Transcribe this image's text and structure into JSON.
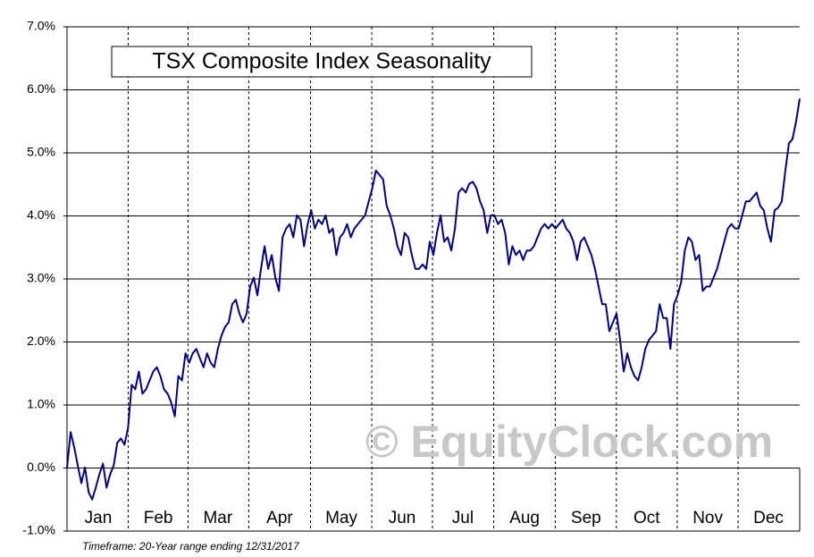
{
  "chart_data": {
    "type": "line",
    "title": "TSX Composite Index Seasonality",
    "watermark": "© EquityClock.com",
    "footnote": "Timeframe: 20-Year range ending 12/31/2017",
    "x": [
      0,
      1,
      2,
      3,
      4,
      5,
      6,
      7,
      8,
      9,
      10,
      11,
      12,
      13,
      14,
      15,
      16,
      17,
      18,
      19,
      20,
      21,
      22,
      23,
      24,
      25,
      26,
      27,
      28,
      29,
      30,
      31,
      32,
      33,
      34,
      35,
      36,
      37,
      38,
      39,
      40,
      41,
      42,
      43,
      44,
      45,
      46,
      47,
      48,
      49,
      50,
      51,
      52,
      53,
      54,
      55,
      56,
      57,
      58,
      59,
      60,
      61,
      62,
      63,
      64,
      65,
      66,
      67,
      68,
      69,
      70,
      71,
      72,
      73,
      74,
      75,
      76,
      77,
      78,
      79,
      80,
      81,
      82,
      83,
      84,
      85,
      86,
      87,
      88,
      89,
      90,
      91,
      92,
      93,
      94,
      95,
      96,
      97,
      98,
      99,
      100,
      101,
      102,
      103,
      104,
      105,
      106,
      107,
      108,
      109,
      110,
      111,
      112,
      113,
      114,
      115,
      116,
      117,
      118,
      119,
      120,
      121,
      122,
      123,
      124,
      125,
      126,
      127,
      128,
      129,
      130,
      131,
      132,
      133,
      134,
      135,
      136,
      137,
      138,
      139,
      140,
      141,
      142,
      143,
      144,
      145,
      146,
      147,
      148,
      149,
      150,
      151,
      152,
      153,
      154,
      155,
      156,
      157,
      158,
      159,
      160,
      161,
      162,
      163,
      164,
      165,
      166,
      167,
      168,
      169,
      170,
      171,
      172,
      173,
      174,
      175,
      176,
      177,
      178,
      179,
      180,
      181,
      182,
      183,
      184,
      185,
      186,
      187,
      188,
      189,
      190,
      191,
      192,
      193,
      194,
      195,
      196,
      197,
      198,
      199,
      200,
      201,
      202,
      203,
      204
    ],
    "series": [
      {
        "color": "#000080",
        "values": [
          0,
          0.57,
          0.33,
          0.04,
          -0.24,
          0.01,
          -0.38,
          -0.5,
          -0.31,
          -0.1,
          0.07,
          -0.31,
          -0.1,
          0.04,
          0.4,
          0.47,
          0.37,
          0.64,
          1.32,
          1.25,
          1.53,
          1.18,
          1.25,
          1.39,
          1.53,
          1.6,
          1.46,
          1.25,
          1.18,
          1.04,
          0.82,
          1.46,
          1.39,
          1.82,
          1.67,
          1.82,
          1.89,
          1.74,
          1.6,
          1.82,
          1.67,
          1.6,
          1.89,
          2.1,
          2.24,
          2.31,
          2.6,
          2.67,
          2.45,
          2.31,
          2.45,
          2.88,
          3.02,
          2.74,
          3.16,
          3.52,
          3.16,
          3.38,
          3.02,
          2.81,
          3.66,
          3.8,
          3.87,
          3.66,
          4.01,
          3.94,
          3.52,
          3.87,
          4.09,
          3.8,
          3.94,
          3.87,
          4.01,
          3.73,
          3.8,
          3.38,
          3.66,
          3.73,
          3.87,
          3.66,
          3.8,
          3.87,
          3.94,
          4.01,
          4.23,
          4.44,
          4.72,
          4.65,
          4.58,
          4.16,
          4.01,
          3.8,
          3.52,
          3.38,
          3.73,
          3.66,
          3.38,
          3.16,
          3.16,
          3.23,
          3.16,
          3.59,
          3.38,
          3.73,
          4.01,
          3.59,
          3.66,
          3.45,
          3.8,
          4.37,
          4.44,
          4.37,
          4.51,
          4.54,
          4.44,
          4.23,
          4.09,
          3.73,
          4.01,
          4.01,
          3.87,
          3.94,
          3.73,
          3.23,
          3.52,
          3.38,
          3.45,
          3.3,
          3.45,
          3.45,
          3.52,
          3.66,
          3.8,
          3.87,
          3.8,
          3.87,
          3.8,
          3.87,
          3.94,
          3.8,
          3.73,
          3.59,
          3.3,
          3.59,
          3.66,
          3.52,
          3.38,
          3.16,
          2.88,
          2.6,
          2.6,
          2.17,
          2.31,
          2.45,
          2.03,
          1.53,
          1.82,
          1.6,
          1.46,
          1.39,
          1.6,
          1.89,
          2.03,
          2.1,
          2.17,
          2.6,
          2.38,
          2.38,
          1.89,
          2.6,
          2.74,
          2.95,
          3.45,
          3.66,
          3.59,
          3.3,
          3.38,
          2.81,
          2.88,
          2.88,
          3.02,
          3.16,
          3.38,
          3.59,
          3.8,
          3.87,
          3.8,
          3.8,
          4.01,
          4.23,
          4.23,
          4.3,
          4.37,
          4.16,
          4.09,
          3.8,
          3.59,
          4.09,
          4.13,
          4.23,
          4.72,
          5.15,
          5.22,
          5.5,
          5.86
        ]
      }
    ],
    "xlim": [
      0,
      204
    ],
    "xticks": [
      {
        "value": 8.7,
        "label": "Jan"
      },
      {
        "value": 25.4,
        "label": "Feb"
      },
      {
        "value": 42,
        "label": "Mar"
      },
      {
        "value": 59.2,
        "label": "Apr"
      },
      {
        "value": 76.4,
        "label": "May"
      },
      {
        "value": 93.3,
        "label": "Jun"
      },
      {
        "value": 110.2,
        "label": "Jul"
      },
      {
        "value": 127.4,
        "label": "Aug"
      },
      {
        "value": 144.5,
        "label": "Sep"
      },
      {
        "value": 161.4,
        "label": "Oct"
      },
      {
        "value": 178.4,
        "label": "Nov"
      },
      {
        "value": 195.3,
        "label": "Dec"
      }
    ],
    "ylim": [
      -1,
      7
    ],
    "yticks": [
      {
        "value": -1,
        "label": "-1.0%"
      },
      {
        "value": 0,
        "label": "0.0%"
      },
      {
        "value": 1,
        "label": "1.0%"
      },
      {
        "value": 2,
        "label": "2.0%"
      },
      {
        "value": 3,
        "label": "3.0%"
      },
      {
        "value": 4,
        "label": "4.0%"
      },
      {
        "value": 5,
        "label": "5.0%"
      },
      {
        "value": 6,
        "label": "6.0%"
      },
      {
        "value": 7,
        "label": "7.0%"
      }
    ],
    "grid": true
  }
}
